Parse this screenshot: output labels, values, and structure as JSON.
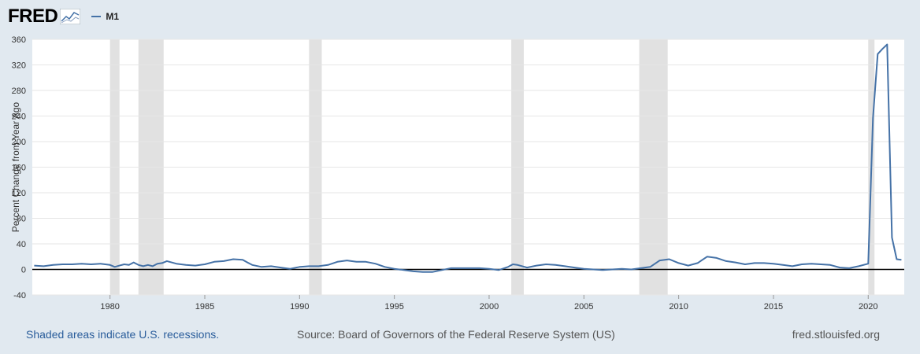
{
  "header": {
    "logo_text": "FRED",
    "legend_label": "M1"
  },
  "colors": {
    "series": "#4572a7",
    "recession": "#e1e1e1",
    "plot_bg": "#ffffff",
    "zero_line": "#000000"
  },
  "chart_data": {
    "type": "line",
    "title": "",
    "xlabel": "",
    "ylabel": "Percent Change from Year Ago",
    "ylim": [
      -40,
      360
    ],
    "xlim": [
      1975.9,
      2021.9
    ],
    "yticks": [
      -40,
      0,
      40,
      80,
      120,
      160,
      200,
      240,
      280,
      320,
      360
    ],
    "xticks": [
      1980,
      1985,
      1990,
      1995,
      2000,
      2005,
      2010,
      2015,
      2020
    ],
    "recessions": [
      [
        1980.0,
        1980.5
      ],
      [
        1981.5,
        1982.83
      ],
      [
        1990.5,
        1991.17
      ],
      [
        2001.17,
        2001.83
      ],
      [
        2007.92,
        2009.42
      ],
      [
        2020.0,
        2020.33
      ]
    ],
    "series": [
      {
        "name": "M1",
        "x": [
          1976.0,
          1976.5,
          1977.0,
          1977.5,
          1978.0,
          1978.5,
          1979.0,
          1979.5,
          1980.0,
          1980.25,
          1980.5,
          1980.75,
          1981.0,
          1981.25,
          1981.5,
          1981.75,
          1982.0,
          1982.25,
          1982.5,
          1982.75,
          1983.0,
          1983.25,
          1983.5,
          1984.0,
          1984.5,
          1985.0,
          1985.5,
          1986.0,
          1986.5,
          1987.0,
          1987.25,
          1987.5,
          1988.0,
          1988.5,
          1989.0,
          1989.5,
          1990.0,
          1990.5,
          1991.0,
          1991.5,
          1992.0,
          1992.5,
          1993.0,
          1993.5,
          1994.0,
          1994.5,
          1995.0,
          1995.5,
          1996.0,
          1996.5,
          1997.0,
          1997.5,
          1998.0,
          1998.5,
          1999.0,
          1999.5,
          2000.0,
          2000.5,
          2001.0,
          2001.25,
          2001.5,
          2002.0,
          2002.5,
          2003.0,
          2003.5,
          2004.0,
          2004.5,
          2005.0,
          2005.5,
          2006.0,
          2006.5,
          2007.0,
          2007.5,
          2008.0,
          2008.5,
          2009.0,
          2009.5,
          2010.0,
          2010.5,
          2011.0,
          2011.25,
          2011.5,
          2012.0,
          2012.5,
          2013.0,
          2013.5,
          2014.0,
          2014.5,
          2015.0,
          2015.5,
          2016.0,
          2016.5,
          2017.0,
          2017.5,
          2018.0,
          2018.5,
          2019.0,
          2019.5,
          2020.0,
          2020.25,
          2020.5,
          2020.75,
          2021.0,
          2021.25,
          2021.5,
          2021.75
        ],
        "values": [
          6,
          5,
          7,
          8,
          8,
          9,
          8,
          9,
          7,
          4,
          6,
          8,
          7,
          11,
          7,
          5,
          7,
          5,
          9,
          10,
          13,
          11,
          9,
          7,
          6,
          8,
          12,
          13,
          16,
          15,
          11,
          7,
          4,
          5,
          3,
          1,
          4,
          5,
          5,
          7,
          12,
          14,
          12,
          12,
          9,
          4,
          1,
          -1,
          -3,
          -4,
          -4,
          -1,
          2,
          2,
          2,
          2,
          1,
          -1,
          4,
          8,
          7,
          3,
          6,
          8,
          7,
          5,
          3,
          1,
          0,
          -1,
          0,
          1,
          0,
          2,
          4,
          14,
          16,
          10,
          6,
          10,
          15,
          20,
          18,
          13,
          11,
          8,
          10,
          10,
          9,
          7,
          5,
          8,
          9,
          8,
          7,
          3,
          2,
          5,
          9,
          237,
          337,
          345,
          352,
          50,
          16,
          15
        ]
      }
    ]
  },
  "footer": {
    "recession_note": "Shaded areas indicate U.S. recessions.",
    "source": "Source: Board of Governors of the Federal Reserve System (US)",
    "site": "fred.stlouisfed.org"
  }
}
